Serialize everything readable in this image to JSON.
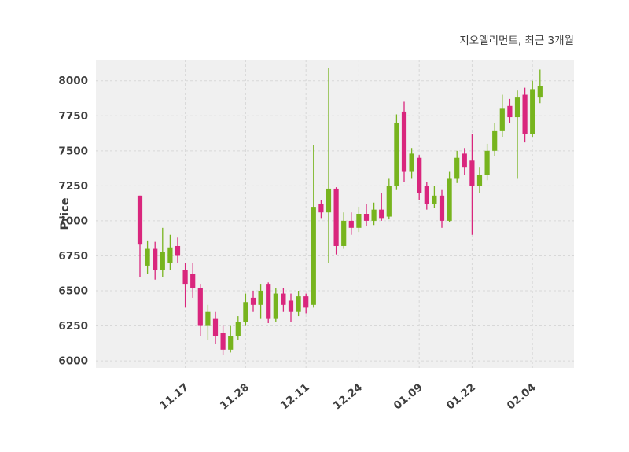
{
  "chart_data": {
    "type": "candlestick",
    "title": "지오엘리먼트, 최근 3개월",
    "ylabel": "Price",
    "xlabel": "",
    "grid": true,
    "legend_position": "none",
    "up_color": "#77b41e",
    "down_color": "#d9267d",
    "plot_bg_color": "#f0f0f0",
    "grid_color": "#d8d8d8",
    "tick_text_color": "#3d3d3d",
    "title_text_color": "#3c3c3c",
    "ylim": [
      5950,
      8150
    ],
    "y_ticks": [
      6000,
      6250,
      6500,
      6750,
      7000,
      7250,
      7500,
      7750,
      8000
    ],
    "x_tick_labels": [
      "11.17",
      "11.28",
      "12.11",
      "12.24",
      "01.09",
      "01.22",
      "02.04"
    ],
    "x_tick_indices": [
      6,
      14,
      22,
      29,
      37,
      44,
      52
    ],
    "candle_format": "open,high,low,close",
    "candles": [
      [
        7180,
        7180,
        6600,
        6830
      ],
      [
        6680,
        6860,
        6620,
        6800
      ],
      [
        6800,
        6850,
        6580,
        6650
      ],
      [
        6650,
        6950,
        6600,
        6780
      ],
      [
        6700,
        6900,
        6650,
        6810
      ],
      [
        6820,
        6880,
        6700,
        6750
      ],
      [
        6650,
        6700,
        6380,
        6550
      ],
      [
        6620,
        6700,
        6450,
        6520
      ],
      [
        6520,
        6550,
        6180,
        6250
      ],
      [
        6250,
        6400,
        6150,
        6350
      ],
      [
        6300,
        6350,
        6120,
        6180
      ],
      [
        6200,
        6250,
        6040,
        6080
      ],
      [
        6080,
        6250,
        6060,
        6180
      ],
      [
        6180,
        6320,
        6150,
        6280
      ],
      [
        6280,
        6480,
        6250,
        6420
      ],
      [
        6450,
        6500,
        6350,
        6400
      ],
      [
        6400,
        6550,
        6300,
        6500
      ],
      [
        6550,
        6560,
        6270,
        6300
      ],
      [
        6300,
        6520,
        6280,
        6480
      ],
      [
        6480,
        6520,
        6350,
        6400
      ],
      [
        6430,
        6480,
        6280,
        6350
      ],
      [
        6350,
        6500,
        6320,
        6460
      ],
      [
        6460,
        6480,
        6340,
        6380
      ],
      [
        6400,
        7540,
        6380,
        7100
      ],
      [
        7120,
        7150,
        7020,
        7060
      ],
      [
        7060,
        8090,
        6700,
        7230
      ],
      [
        7230,
        7240,
        6760,
        6820
      ],
      [
        6820,
        7060,
        6800,
        7000
      ],
      [
        7000,
        7060,
        6900,
        6950
      ],
      [
        6950,
        7100,
        6920,
        7050
      ],
      [
        7050,
        7120,
        6960,
        7000
      ],
      [
        7000,
        7130,
        6970,
        7080
      ],
      [
        7080,
        7200,
        7000,
        7020
      ],
      [
        7030,
        7300,
        7010,
        7250
      ],
      [
        7250,
        7760,
        7220,
        7700
      ],
      [
        7780,
        7850,
        7280,
        7350
      ],
      [
        7350,
        7520,
        7300,
        7480
      ],
      [
        7450,
        7470,
        7150,
        7200
      ],
      [
        7250,
        7280,
        7080,
        7120
      ],
      [
        7120,
        7250,
        7090,
        7180
      ],
      [
        7180,
        7220,
        6950,
        7000
      ],
      [
        7000,
        7350,
        6990,
        7300
      ],
      [
        7300,
        7500,
        7270,
        7450
      ],
      [
        7480,
        7520,
        7330,
        7380
      ],
      [
        7430,
        7620,
        6900,
        7250
      ],
      [
        7250,
        7380,
        7200,
        7330
      ],
      [
        7330,
        7550,
        7290,
        7500
      ],
      [
        7500,
        7700,
        7460,
        7640
      ],
      [
        7640,
        7900,
        7600,
        7800
      ],
      [
        7820,
        7870,
        7700,
        7740
      ],
      [
        7740,
        7930,
        7300,
        7880
      ],
      [
        7900,
        7950,
        7560,
        7620
      ],
      [
        7620,
        8000,
        7600,
        7940
      ],
      [
        7880,
        8080,
        7840,
        7960
      ]
    ]
  }
}
